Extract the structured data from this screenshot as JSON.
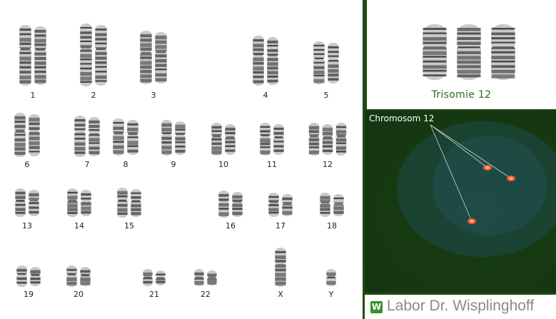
{
  "karyogram": {
    "chromosomes": [
      {
        "label": "1",
        "count": 2
      },
      {
        "label": "2",
        "count": 2
      },
      {
        "label": "3",
        "count": 2
      },
      {
        "label": "4",
        "count": 2
      },
      {
        "label": "5",
        "count": 2
      },
      {
        "label": "6",
        "count": 2
      },
      {
        "label": "7",
        "count": 2
      },
      {
        "label": "8",
        "count": 2
      },
      {
        "label": "9",
        "count": 2
      },
      {
        "label": "10",
        "count": 2
      },
      {
        "label": "11",
        "count": 2
      },
      {
        "label": "12",
        "count": 3
      },
      {
        "label": "13",
        "count": 2
      },
      {
        "label": "14",
        "count": 2
      },
      {
        "label": "15",
        "count": 2
      },
      {
        "label": "16",
        "count": 2
      },
      {
        "label": "17",
        "count": 2
      },
      {
        "label": "18",
        "count": 2
      },
      {
        "label": "19",
        "count": 2
      },
      {
        "label": "20",
        "count": 2
      },
      {
        "label": "21",
        "count": 2
      },
      {
        "label": "22",
        "count": 2
      },
      {
        "label": "X",
        "count": 1
      },
      {
        "label": "Y",
        "count": 1
      }
    ]
  },
  "trisomy_panel": {
    "caption": "Trisomie 12",
    "count": 3
  },
  "fish_panel": {
    "label": "Chromosom 12",
    "signal_count": 3,
    "signal_color": "#ff5a2a"
  },
  "footer": {
    "logo_letter": "W",
    "text": "Labor Dr. Wisplinghoff",
    "accent_color": "#3b8f2c"
  }
}
